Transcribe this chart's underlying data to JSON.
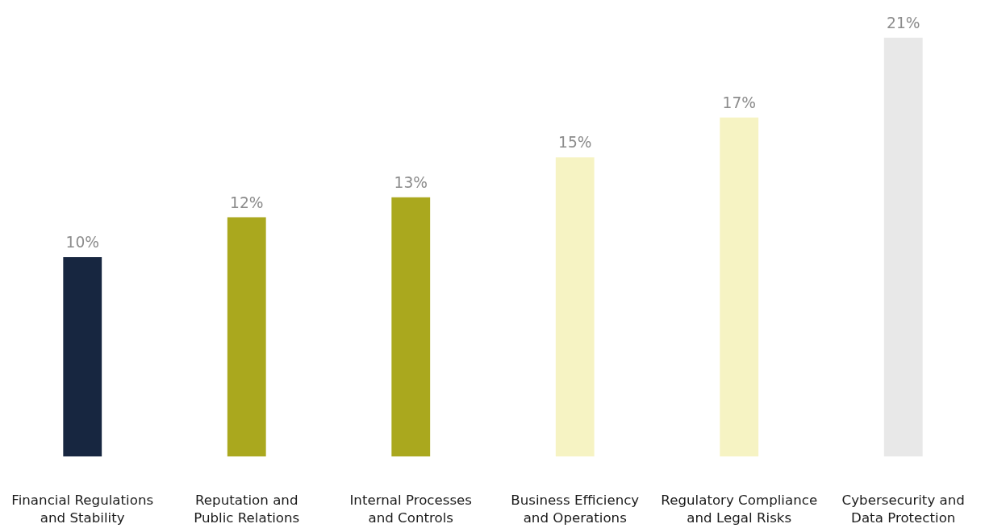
{
  "chart_data": {
    "type": "bar",
    "categories": [
      "Financial Regulations and Stability",
      "Reputation and Public Relations",
      "Internal Processes and Controls",
      "Business Efficiency and Operations",
      "Regulatory Compliance and Legal Risks",
      "Cybersecurity and Data Protection"
    ],
    "values": [
      10,
      12,
      13,
      15,
      17,
      21
    ],
    "colors": [
      "#172640",
      "#aaa81e",
      "#aaa81e",
      "#f6f3c3",
      "#f6f3c3",
      "#e8e8e8"
    ],
    "value_labels": [
      "10%",
      "12%",
      "13%",
      "15%",
      "17%",
      "21%"
    ],
    "grid": false
  }
}
